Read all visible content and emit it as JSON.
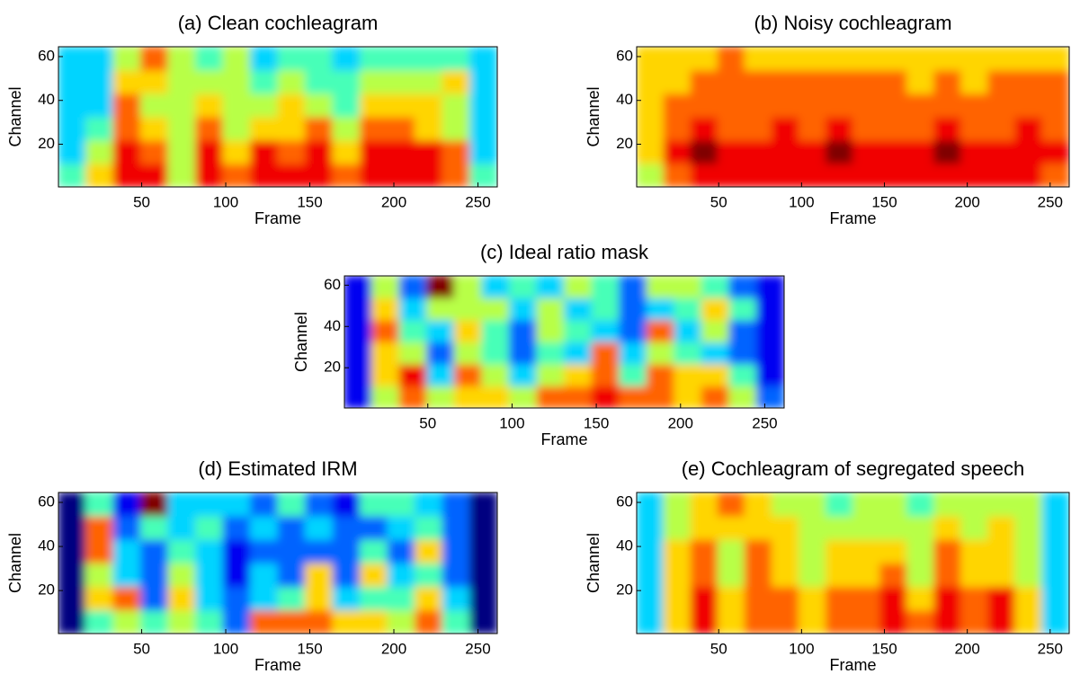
{
  "chart_data": [
    {
      "type": "heatmap",
      "title": "(a) Clean cochleagram",
      "xlabel": "Frame",
      "ylabel": "Channel",
      "colormap": "jet",
      "clim": [
        0,
        9
      ],
      "xlim": [
        0.5,
        261.5
      ],
      "ylim": [
        0.5,
        64.5
      ],
      "xticks": [
        50,
        100,
        150,
        200,
        250
      ],
      "yticks": [
        20,
        40,
        60
      ],
      "z": [
        [
          4,
          6,
          8,
          8,
          5,
          8,
          7,
          8,
          8,
          8,
          7,
          8,
          8,
          8,
          7,
          4
        ],
        [
          3,
          5,
          8,
          7,
          5,
          8,
          6,
          8,
          7,
          8,
          6,
          8,
          8,
          8,
          7,
          3
        ],
        [
          3,
          4,
          7,
          6,
          5,
          7,
          5,
          6,
          6,
          7,
          5,
          7,
          7,
          6,
          5,
          3
        ],
        [
          3,
          3,
          7,
          5,
          5,
          6,
          5,
          5,
          6,
          5,
          4,
          6,
          6,
          6,
          5,
          3
        ],
        [
          3,
          3,
          6,
          6,
          5,
          5,
          5,
          4,
          5,
          4,
          4,
          5,
          5,
          5,
          6,
          3
        ],
        [
          3,
          3,
          5,
          7,
          5,
          4,
          5,
          3,
          4,
          4,
          3,
          4,
          4,
          4,
          4,
          3
        ]
      ]
    },
    {
      "type": "heatmap",
      "title": "(b) Noisy cochleagram",
      "xlabel": "Frame",
      "ylabel": "Channel",
      "colormap": "jet",
      "clim": [
        0,
        9
      ],
      "xlim": [
        0.5,
        261.5
      ],
      "ylim": [
        0.5,
        64.5
      ],
      "xticks": [
        50,
        100,
        150,
        200,
        250
      ],
      "yticks": [
        20,
        40,
        60
      ],
      "z": [
        [
          5,
          7,
          8,
          8,
          8,
          8,
          8,
          8,
          8,
          8,
          8,
          8,
          8,
          8,
          8,
          7
        ],
        [
          6,
          8,
          9,
          8,
          8,
          8,
          8,
          9,
          8,
          8,
          8,
          9,
          8,
          8,
          8,
          8
        ],
        [
          6,
          7,
          8,
          7,
          7,
          8,
          7,
          8,
          7,
          7,
          7,
          8,
          7,
          7,
          8,
          7
        ],
        [
          6,
          7,
          7,
          7,
          7,
          7,
          7,
          7,
          7,
          7,
          7,
          7,
          7,
          7,
          7,
          7
        ],
        [
          6,
          6,
          7,
          7,
          7,
          7,
          7,
          7,
          7,
          7,
          6,
          7,
          6,
          7,
          7,
          7
        ],
        [
          6,
          6,
          6,
          7,
          6,
          6,
          6,
          6,
          6,
          6,
          6,
          6,
          6,
          6,
          6,
          6
        ]
      ]
    },
    {
      "type": "heatmap",
      "title": "(c) Ideal ratio mask",
      "xlabel": "Frame",
      "ylabel": "Channel",
      "colormap": "jet",
      "clim": [
        0,
        9
      ],
      "xlim": [
        0.5,
        261.5
      ],
      "ylim": [
        0.5,
        64.5
      ],
      "xticks": [
        50,
        100,
        150,
        200,
        250
      ],
      "yticks": [
        20,
        40,
        60
      ],
      "z": [
        [
          1,
          5,
          7,
          5,
          6,
          6,
          5,
          7,
          7,
          8,
          7,
          7,
          6,
          7,
          5,
          2
        ],
        [
          1,
          6,
          8,
          3,
          7,
          5,
          3,
          5,
          6,
          7,
          4,
          7,
          6,
          6,
          4,
          1
        ],
        [
          1,
          6,
          5,
          2,
          5,
          4,
          2,
          4,
          3,
          7,
          3,
          5,
          4,
          3,
          2,
          1
        ],
        [
          1,
          7,
          4,
          3,
          6,
          4,
          2,
          5,
          4,
          3,
          2,
          7,
          3,
          5,
          2,
          1
        ],
        [
          1,
          6,
          3,
          5,
          5,
          5,
          3,
          5,
          3,
          4,
          2,
          3,
          4,
          6,
          4,
          1
        ],
        [
          1,
          5,
          2,
          9,
          5,
          3,
          4,
          3,
          5,
          4,
          2,
          5,
          5,
          4,
          2,
          1
        ]
      ]
    },
    {
      "type": "heatmap",
      "title": "(d) Estimated IRM",
      "xlabel": "Frame",
      "ylabel": "Channel",
      "colormap": "jet",
      "clim": [
        0,
        9
      ],
      "xlim": [
        0.5,
        261.5
      ],
      "ylim": [
        0.5,
        64.5
      ],
      "xticks": [
        50,
        100,
        150,
        200,
        250
      ],
      "yticks": [
        20,
        40,
        60
      ],
      "z": [
        [
          0,
          4,
          5,
          4,
          5,
          4,
          2,
          7,
          7,
          7,
          6,
          6,
          5,
          7,
          4,
          0
        ],
        [
          0,
          6,
          7,
          2,
          6,
          3,
          2,
          3,
          4,
          6,
          3,
          4,
          4,
          6,
          3,
          0
        ],
        [
          0,
          5,
          3,
          2,
          5,
          3,
          1,
          3,
          2,
          6,
          2,
          6,
          3,
          4,
          2,
          0
        ],
        [
          0,
          7,
          3,
          2,
          4,
          3,
          1,
          2,
          2,
          2,
          2,
          4,
          2,
          6,
          2,
          0
        ],
        [
          0,
          7,
          2,
          4,
          3,
          4,
          2,
          3,
          2,
          3,
          2,
          2,
          3,
          4,
          2,
          0
        ],
        [
          0,
          4,
          1,
          9,
          3,
          3,
          3,
          2,
          4,
          2,
          1,
          4,
          4,
          3,
          2,
          0
        ]
      ]
    },
    {
      "type": "heatmap",
      "title": "(e) Cochleagram of segregated speech",
      "xlabel": "Frame",
      "ylabel": "Channel",
      "colormap": "jet",
      "clim": [
        0,
        9
      ],
      "xlim": [
        0.5,
        261.5
      ],
      "ylim": [
        0.5,
        64.5
      ],
      "xticks": [
        50,
        100,
        150,
        200,
        250
      ],
      "yticks": [
        20,
        40,
        60
      ],
      "z": [
        [
          3,
          6,
          8,
          6,
          7,
          7,
          6,
          7,
          7,
          8,
          7,
          8,
          7,
          8,
          6,
          3
        ],
        [
          3,
          6,
          8,
          6,
          7,
          7,
          6,
          7,
          7,
          8,
          6,
          8,
          7,
          8,
          6,
          3
        ],
        [
          3,
          6,
          7,
          5,
          7,
          6,
          5,
          6,
          6,
          7,
          5,
          7,
          6,
          6,
          5,
          3
        ],
        [
          3,
          6,
          7,
          5,
          7,
          6,
          5,
          6,
          6,
          6,
          5,
          7,
          6,
          6,
          5,
          3
        ],
        [
          3,
          5,
          6,
          6,
          6,
          6,
          5,
          5,
          5,
          5,
          5,
          6,
          5,
          6,
          5,
          3
        ],
        [
          3,
          5,
          6,
          7,
          6,
          5,
          5,
          4,
          5,
          5,
          4,
          5,
          5,
          5,
          5,
          3
        ]
      ]
    }
  ]
}
